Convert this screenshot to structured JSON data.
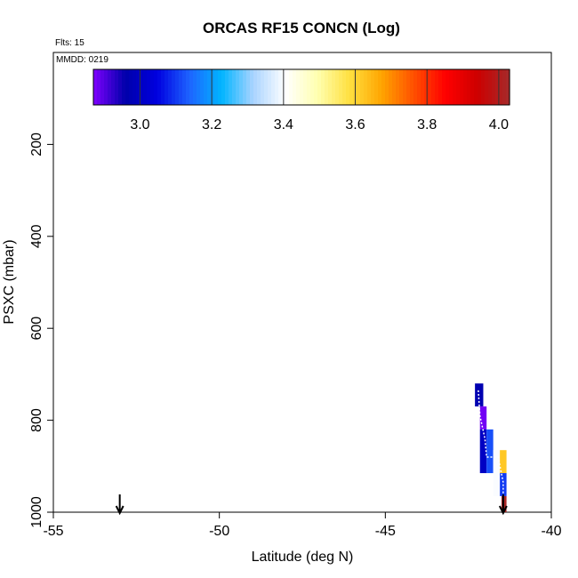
{
  "chart_data": {
    "type": "heatmap",
    "title": "ORCAS RF15 CONCN (Log)",
    "flights_label": "Flts: 15",
    "date_label": "MMDD: 0219",
    "xlabel": "Latitude (deg N)",
    "ylabel": "PSXC (mbar)",
    "xlim": [
      -55,
      -40
    ],
    "ylim": [
      1000,
      0
    ],
    "x_ticks": [
      -55,
      -50,
      -45,
      -40
    ],
    "x_tick_labels": [
      "-55",
      "-50",
      "-45",
      "-40"
    ],
    "y_ticks": [
      200,
      400,
      600,
      800,
      1000
    ],
    "y_tick_labels": [
      "200",
      "400",
      "600",
      "800",
      "1000"
    ],
    "colorbar": {
      "range": [
        2.87,
        4.03
      ],
      "ticks": [
        3.0,
        3.2,
        3.4,
        3.6,
        3.8,
        4.0
      ],
      "tick_labels": [
        "3.0",
        "3.2",
        "3.4",
        "3.6",
        "3.8",
        "4.0"
      ],
      "colors": [
        "#7f00ff",
        "#0000aa",
        "#0000e0",
        "#1e64ff",
        "#00b4ff",
        "#aad4ff",
        "#ffffff",
        "#ffffb0",
        "#ffe040",
        "#ffa500",
        "#ff5000",
        "#ff0000",
        "#cd0000",
        "#a52a2a"
      ]
    },
    "cells": [
      {
        "lat0": -42.3,
        "lat1": -42.05,
        "p0": 720,
        "p1": 770,
        "value": 2.97
      },
      {
        "lat0": -42.15,
        "lat1": -41.95,
        "p0": 770,
        "p1": 820,
        "value": 2.88
      },
      {
        "lat0": -42.15,
        "lat1": -41.95,
        "p0": 820,
        "p1": 915,
        "value": 3.0
      },
      {
        "lat0": -41.95,
        "lat1": -41.75,
        "p0": 820,
        "p1": 915,
        "value": 3.12
      },
      {
        "lat0": -41.75,
        "lat1": -41.55,
        "p0": 865,
        "p1": 965,
        "value": 3.4
      },
      {
        "lat0": -41.55,
        "lat1": -41.35,
        "p0": 865,
        "p1": 915,
        "value": 3.62
      },
      {
        "lat0": -41.55,
        "lat1": -41.35,
        "p0": 915,
        "p1": 965,
        "value": 3.1
      },
      {
        "lat0": -41.5,
        "lat1": -41.35,
        "p0": 965,
        "p1": 1000,
        "value": 4.02
      }
    ],
    "track": [
      {
        "lat": -42.2,
        "p": 735
      },
      {
        "lat": -42.15,
        "p": 790
      },
      {
        "lat": -42.0,
        "p": 840
      },
      {
        "lat": -41.95,
        "p": 880
      },
      {
        "lat": -41.6,
        "p": 880
      },
      {
        "lat": -41.45,
        "p": 935
      },
      {
        "lat": -41.45,
        "p": 985
      }
    ],
    "arrows": [
      {
        "lat": -53.0
      },
      {
        "lat": -41.45
      }
    ]
  }
}
